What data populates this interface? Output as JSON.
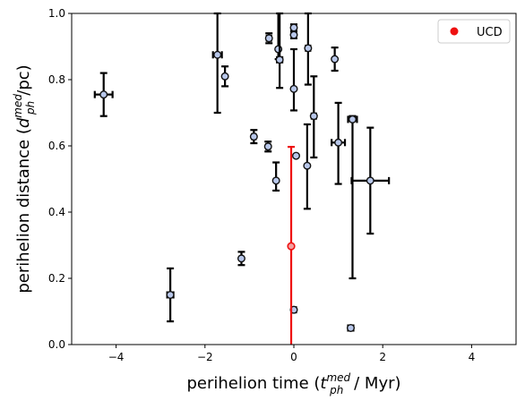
{
  "chart_data": {
    "type": "scatter",
    "title": "",
    "xlabel": {
      "main": "perihelion time (",
      "sym": "t",
      "sup": "med",
      "sub": "ph",
      "tail": " / Myr)"
    },
    "ylabel": {
      "main": "perihelion distance (",
      "sym": "d",
      "sup": "med",
      "sub": "ph",
      "tail": "/pc)"
    },
    "xlim": [
      -5,
      5
    ],
    "ylim": [
      0,
      1
    ],
    "xticks": [
      -4,
      -2,
      0,
      2,
      4
    ],
    "yticks": [
      0.0,
      0.2,
      0.4,
      0.6,
      0.8,
      1.0
    ],
    "xtick_labels": [
      "−4",
      "−2",
      "0",
      "2",
      "4"
    ],
    "ytick_labels": [
      "0.0",
      "0.2",
      "0.4",
      "0.6",
      "0.8",
      "1.0"
    ],
    "grid": false,
    "legend_position": "top-right",
    "series": [
      {
        "name": "",
        "color": "#000000",
        "marker_face": "#b8c7ea",
        "points": [
          {
            "x": -4.28,
            "y": 0.755,
            "xerr": [
              0.2,
              0.2
            ],
            "yerr": [
              0.065,
              0.065
            ]
          },
          {
            "x": -2.78,
            "y": 0.15,
            "xerr": [
              0.07,
              0.07
            ],
            "yerr": [
              0.08,
              0.08
            ]
          },
          {
            "x": -1.72,
            "y": 0.875,
            "xerr": [
              0.1,
              0.1
            ],
            "yerr": [
              0.175,
              0.125
            ]
          },
          {
            "x": -1.55,
            "y": 0.81,
            "xerr": [
              0.0,
              0.0
            ],
            "yerr": [
              0.03,
              0.03
            ]
          },
          {
            "x": -1.18,
            "y": 0.26,
            "xerr": [
              0.0,
              0.0
            ],
            "yerr": [
              0.02,
              0.02
            ]
          },
          {
            "x": -0.9,
            "y": 0.628,
            "xerr": [
              0.04,
              0.04
            ],
            "yerr": [
              0.02,
              0.02
            ]
          },
          {
            "x": -0.58,
            "y": 0.598,
            "xerr": [
              0.04,
              0.04
            ],
            "yerr": [
              0.015,
              0.015
            ]
          },
          {
            "x": -0.56,
            "y": 0.925,
            "xerr": [
              0.05,
              0.05
            ],
            "yerr": [
              0.015,
              0.015
            ]
          },
          {
            "x": -0.4,
            "y": 0.495,
            "xerr": [
              0.0,
              0.0
            ],
            "yerr": [
              0.03,
              0.055
            ]
          },
          {
            "x": -0.35,
            "y": 0.892,
            "xerr": [
              0.0,
              0.0
            ],
            "yerr": [
              0.03,
              0.12
            ]
          },
          {
            "x": -0.32,
            "y": 0.86,
            "xerr": [
              0.06,
              0.06
            ],
            "yerr": [
              0.085,
              0.14
            ]
          },
          {
            "x": 0.0,
            "y": 0.772,
            "xerr": [
              0.0,
              0.0
            ],
            "yerr": [
              0.065,
              0.12
            ]
          },
          {
            "x": 0.0,
            "y": 0.935,
            "xerr": [
              0.0,
              0.0
            ],
            "yerr": [
              0.01,
              0.01
            ]
          },
          {
            "x": 0.0,
            "y": 0.957,
            "xerr": [
              0.0,
              0.0
            ],
            "yerr": [
              0.01,
              0.01
            ]
          },
          {
            "x": 0.0,
            "y": 0.105,
            "xerr": [
              0.05,
              0.05
            ],
            "yerr": [
              0.0,
              0.0
            ]
          },
          {
            "x": 0.05,
            "y": 0.57,
            "xerr": [
              0.0,
              0.0
            ],
            "yerr": [
              0.0,
              0.0
            ]
          },
          {
            "x": 0.3,
            "y": 0.54,
            "xerr": [
              0.0,
              0.0
            ],
            "yerr": [
              0.13,
              0.125
            ]
          },
          {
            "x": 0.32,
            "y": 0.895,
            "xerr": [
              0.05,
              0.05
            ],
            "yerr": [
              0.11,
              0.105
            ]
          },
          {
            "x": 0.45,
            "y": 0.69,
            "xerr": [
              0.05,
              0.05
            ],
            "yerr": [
              0.125,
              0.12
            ]
          },
          {
            "x": 0.92,
            "y": 0.862,
            "xerr": [
              0.0,
              0.0
            ],
            "yerr": [
              0.035,
              0.035
            ]
          },
          {
            "x": 1.0,
            "y": 0.61,
            "xerr": [
              0.15,
              0.15
            ],
            "yerr": [
              0.125,
              0.12
            ]
          },
          {
            "x": 1.28,
            "y": 0.05,
            "xerr": [
              0.06,
              0.06
            ],
            "yerr": [
              0.0,
              0.0
            ]
          },
          {
            "x": 1.32,
            "y": 0.68,
            "xerr": [
              0.1,
              0.1
            ],
            "yerr": [
              0.48,
              0.01
            ]
          },
          {
            "x": 1.72,
            "y": 0.495,
            "xerr": [
              0.42,
              0.42
            ],
            "yerr": [
              0.16,
              0.16
            ]
          }
        ]
      },
      {
        "name": "UCD",
        "color": "#ee1111",
        "marker_face": "#ee1111",
        "points": [
          {
            "x": -0.06,
            "y": 0.297,
            "xerr": [
              0.0,
              0.0
            ],
            "yerr": [
              0.3,
              0.3
            ]
          }
        ]
      }
    ]
  }
}
